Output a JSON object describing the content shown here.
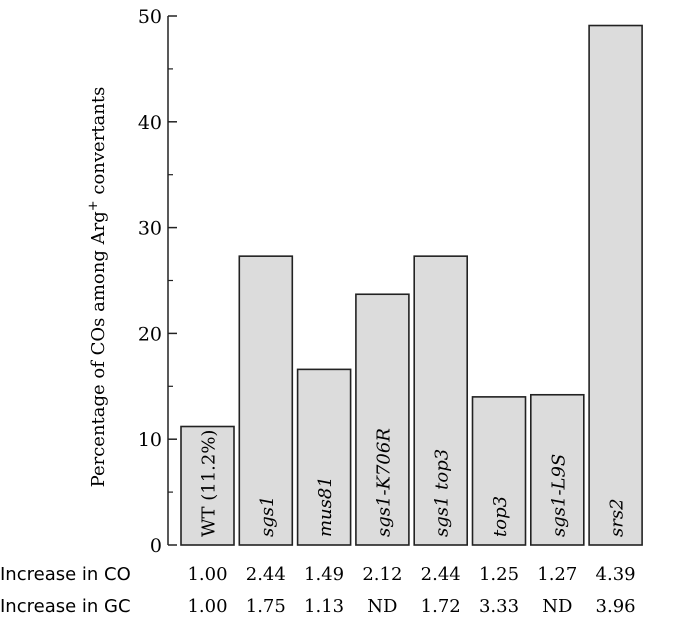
{
  "chart_data": {
    "type": "bar",
    "ylabel": "Percentage of COs among Arg+ convertants",
    "ylabel_parts": {
      "before": "Percentage of COs among Arg",
      "superscript": "+",
      "after": " convertants"
    },
    "ylim": [
      0,
      50
    ],
    "yticks": [
      0,
      10,
      20,
      30,
      40,
      50
    ],
    "categories": [
      "WT (11.2%)",
      "sgs1",
      "mus81",
      "sgs1-K706R",
      "sgs1 top3",
      "top3",
      "sgs1-L9S",
      "srs2"
    ],
    "category_italic": [
      false,
      true,
      true,
      true,
      true,
      true,
      true,
      true
    ],
    "values": [
      11.2,
      27.3,
      16.6,
      23.7,
      27.3,
      14.0,
      14.2,
      49.1
    ],
    "bar_color": "#dcdcdc",
    "grid": false,
    "rows": [
      {
        "label": "Increase in CO",
        "values": [
          "1.00",
          "2.44",
          "1.49",
          "2.12",
          "2.44",
          "1.25",
          "1.27",
          "4.39"
        ]
      },
      {
        "label": "Increase in GC",
        "values": [
          "1.00",
          "1.75",
          "1.13",
          "ND",
          "1.72",
          "3.33",
          "ND",
          "3.96"
        ]
      }
    ]
  }
}
